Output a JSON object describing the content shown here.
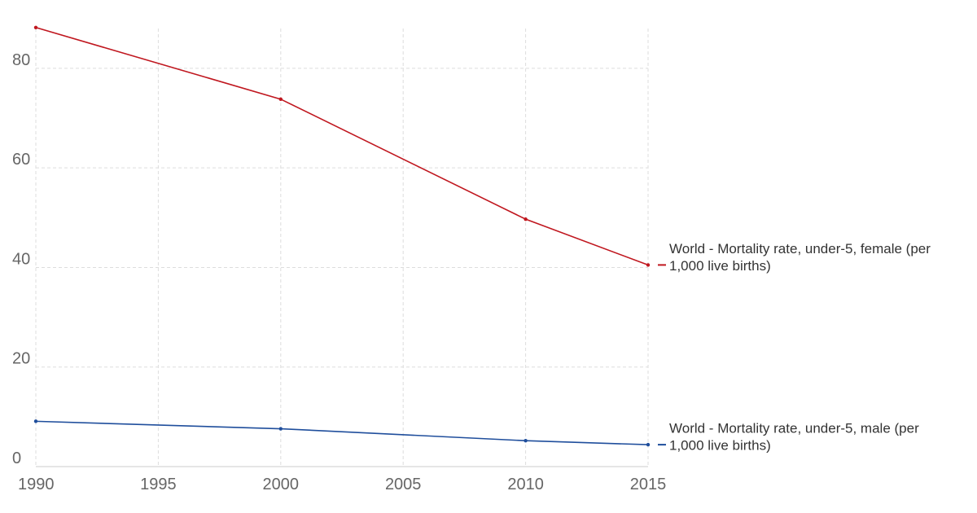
{
  "chart_data": {
    "type": "line",
    "title": "",
    "xlabel": "",
    "ylabel": "",
    "xlim": [
      1990,
      2015
    ],
    "ylim": [
      0,
      88
    ],
    "x_ticks": [
      1990,
      1995,
      2000,
      2005,
      2010,
      2015
    ],
    "y_ticks": [
      0,
      20,
      40,
      60,
      80
    ],
    "grid": true,
    "legend": "line-end labels (right)",
    "series": [
      {
        "name": "World - Mortality rate, under-5, female (per 1,000 live births)",
        "label_lines": [
          "World - Mortality rate, under-5, female (per",
          "1,000 live births)"
        ],
        "color": "#c0171f",
        "x": [
          1990,
          2000,
          2010,
          2015
        ],
        "values": [
          88.2,
          73.8,
          49.7,
          40.5
        ]
      },
      {
        "name": "World - Mortality rate, under-5, male (per 1,000 live births)",
        "label_lines": [
          "World - Mortality rate, under-5, male (per",
          "1,000 live births)"
        ],
        "color": "#1f4e9c",
        "x": [
          1990,
          2000,
          2010,
          2015
        ],
        "values": [
          9.1,
          7.6,
          5.2,
          4.4
        ]
      }
    ]
  }
}
